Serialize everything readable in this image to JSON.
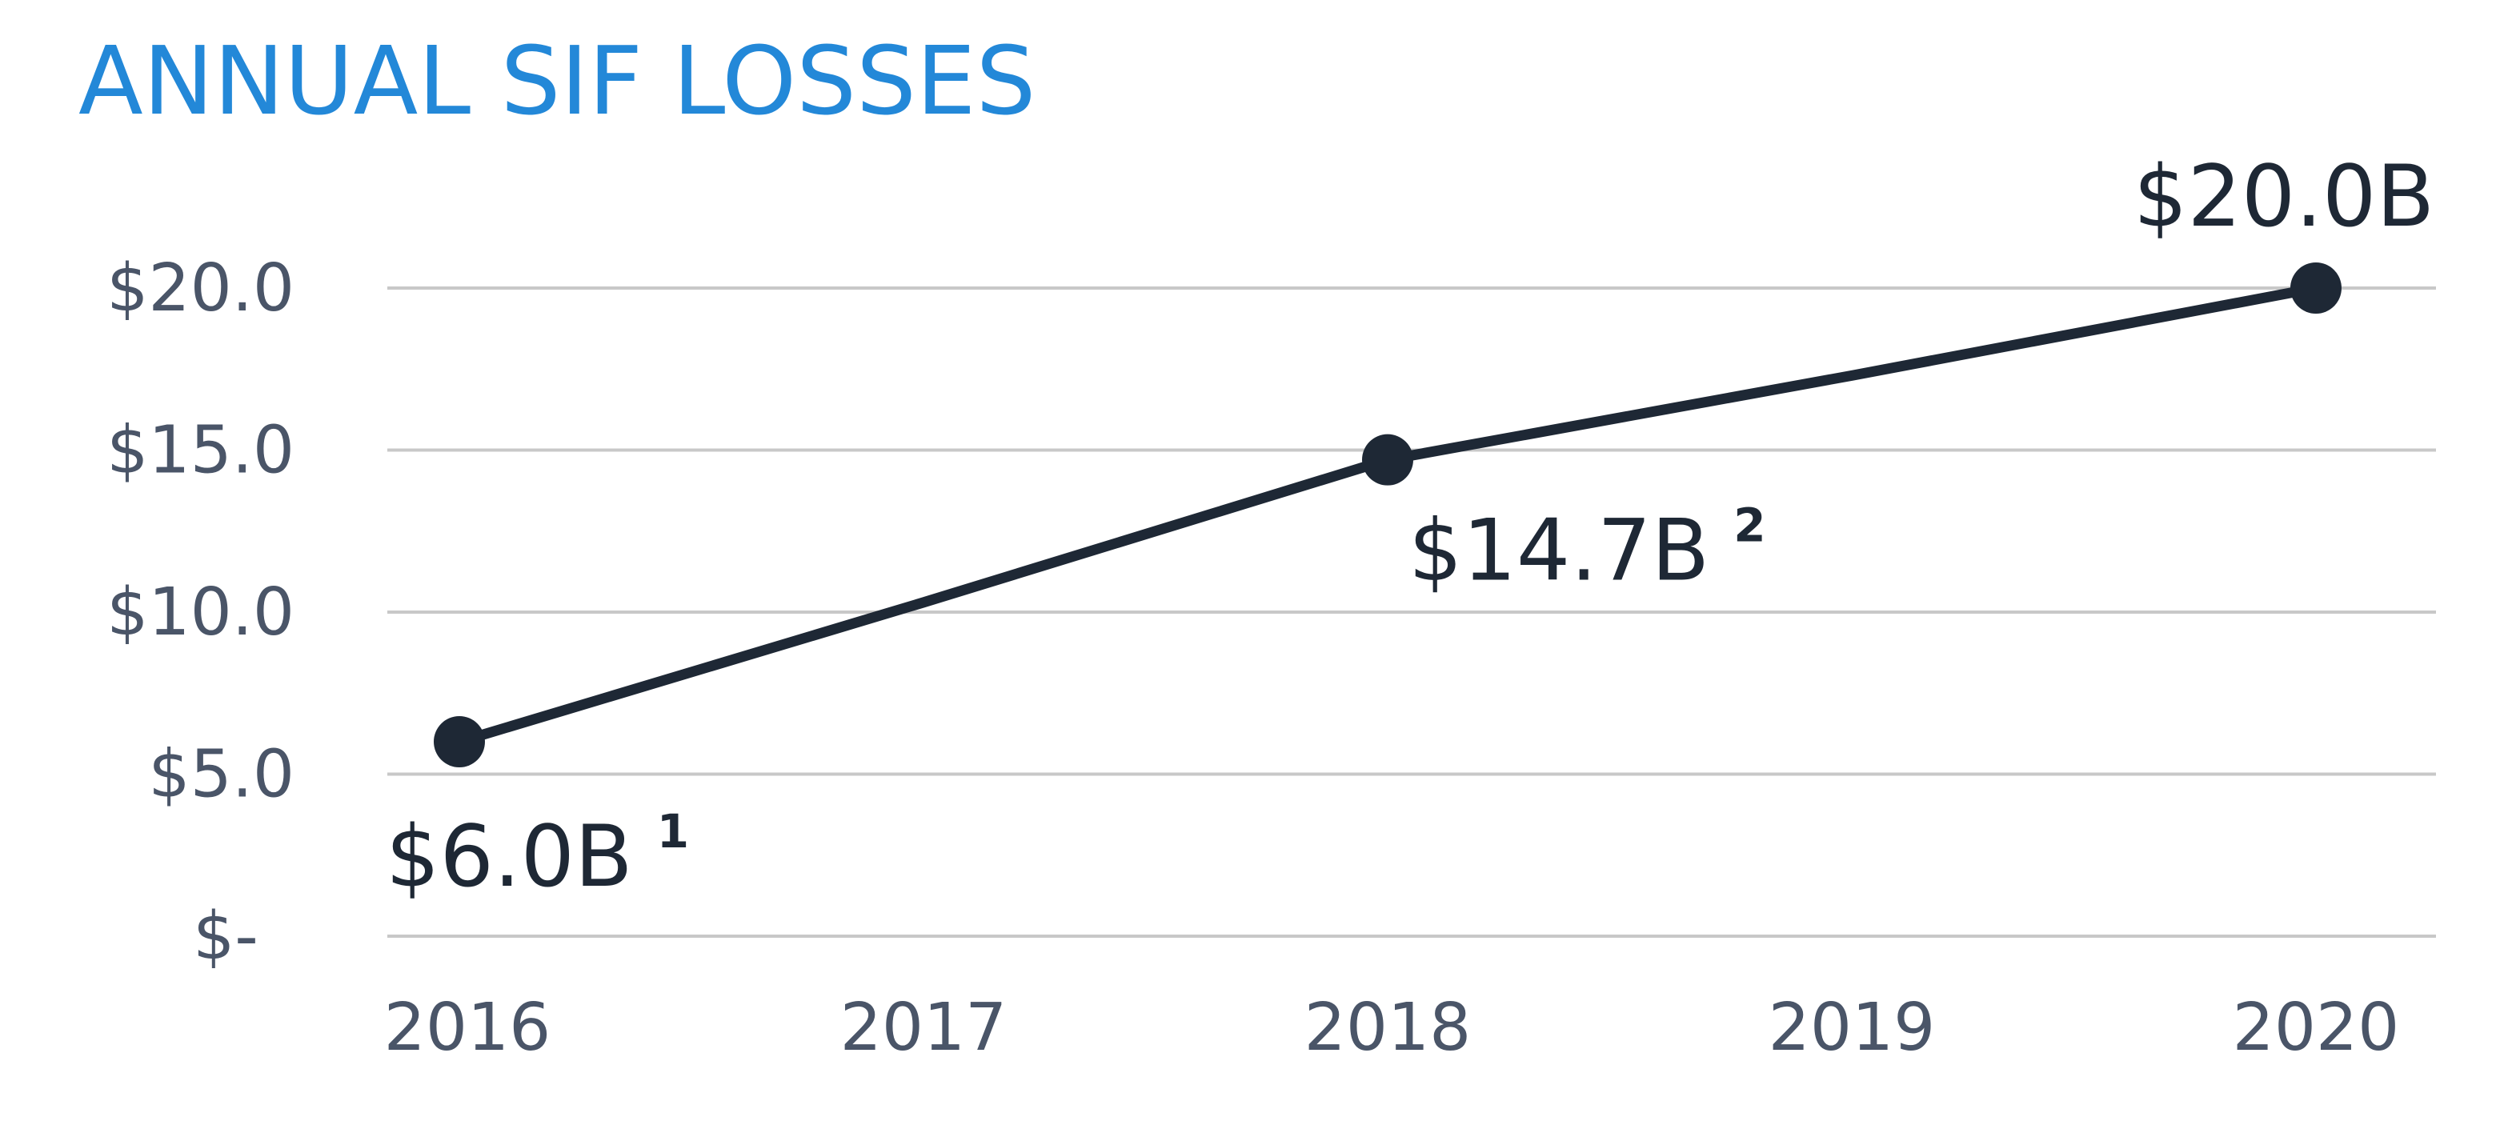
{
  "colors": {
    "title": "#2388D8",
    "line": "#1E2835",
    "tick_text": "#4A5568",
    "grid": "#C8C8C8",
    "label": "#1E2835"
  },
  "chart_data": {
    "type": "line",
    "title": "ANNUAL SIF LOSSES",
    "xlabel": "",
    "ylabel": "",
    "categories": [
      "2016",
      "2017",
      "2018",
      "2019",
      "2020"
    ],
    "x": [
      2016,
      2017,
      2018,
      2019,
      2020
    ],
    "series": [
      {
        "values": [
          6.0,
          10.3,
          14.7,
          17.3,
          20.0
        ]
      }
    ],
    "markers": [
      {
        "x": 2016,
        "y": 6.0,
        "label": "$6.0B",
        "note": "1",
        "label_position": "below"
      },
      {
        "x": 2018,
        "y": 14.7,
        "label": "$14.7B",
        "note": "2",
        "label_position": "below-right"
      },
      {
        "x": 2020,
        "y": 20.0,
        "label": "$20.0B",
        "note": "",
        "label_position": "above"
      }
    ],
    "y_ticks": [
      0,
      5,
      10,
      15,
      20
    ],
    "y_tick_labels": [
      "$-",
      "$5.0",
      "$10.0",
      "$15.0",
      "$20.0"
    ],
    "ylim": [
      0,
      20
    ],
    "grid": true,
    "legend": "none"
  }
}
